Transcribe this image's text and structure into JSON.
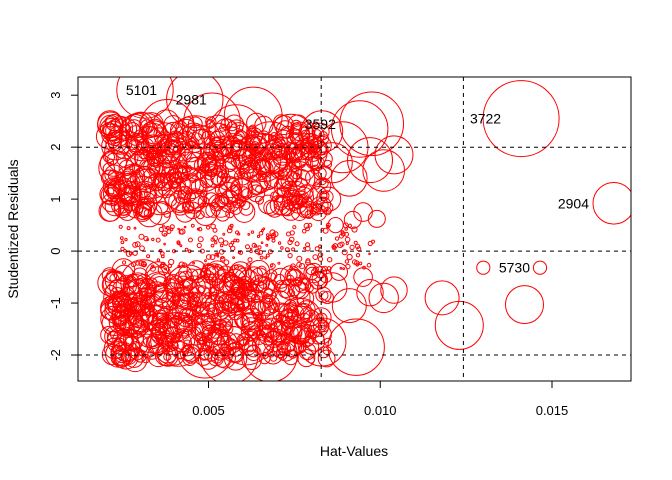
{
  "chart_data": {
    "type": "scatter",
    "title": "",
    "xlabel": "Hat-Values",
    "ylabel": "Studentized Residuals",
    "xlim": [
      0.0012,
      0.0173
    ],
    "ylim": [
      -2.5,
      3.35
    ],
    "x_ticks": [
      0.005,
      0.01,
      0.015
    ],
    "x_tick_labels": [
      "0.005",
      "0.010",
      "0.015"
    ],
    "y_ticks": [
      -2,
      -1,
      0,
      1,
      2,
      3
    ],
    "y_tick_labels": [
      "-2",
      "-1",
      "0",
      "1",
      "2",
      "3"
    ],
    "reference_lines": {
      "horizontal": [
        -2,
        0,
        2
      ],
      "vertical": [
        0.00828,
        0.01242
      ],
      "style": "dashed"
    },
    "marker": {
      "shape": "circle",
      "fill": "none",
      "color": "#ff0000",
      "size_encodes": "Cook's distance"
    },
    "grid": false,
    "legend": "none",
    "labeled_points": [
      {
        "label": "5101",
        "x": 0.00315,
        "y": 3.1,
        "cook": 0.55
      },
      {
        "label": "2981",
        "x": 0.0046,
        "y": 2.92,
        "cook": 0.55
      },
      {
        "label": "3592",
        "x": 0.00975,
        "y": 2.45,
        "cook": 0.7
      },
      {
        "label": "3722",
        "x": 0.0141,
        "y": 2.55,
        "cook": 1.0
      },
      {
        "label": "2904",
        "x": 0.0168,
        "y": 0.92,
        "cook": 0.3
      },
      {
        "label": "5730",
        "x": 0.01465,
        "y": -0.32,
        "cook": 0.03
      }
    ],
    "points": [
      {
        "x": 0.0023,
        "y": 1.6,
        "cook": 0.2
      },
      {
        "x": 0.0026,
        "y": 1.9,
        "cook": 0.32
      },
      {
        "x": 0.0028,
        "y": 1.3,
        "cook": 0.25
      },
      {
        "x": 0.0031,
        "y": 2.2,
        "cook": 0.4
      },
      {
        "x": 0.0033,
        "y": 1.5,
        "cook": 0.45
      },
      {
        "x": 0.0036,
        "y": 1.1,
        "cook": 0.3
      },
      {
        "x": 0.0038,
        "y": 2.4,
        "cook": 0.5
      },
      {
        "x": 0.0041,
        "y": 1.8,
        "cook": 0.42
      },
      {
        "x": 0.0043,
        "y": 1.2,
        "cook": 0.35
      },
      {
        "x": 0.0046,
        "y": 2.1,
        "cook": 0.48
      },
      {
        "x": 0.0048,
        "y": 1.6,
        "cook": 0.4
      },
      {
        "x": 0.0051,
        "y": 2.5,
        "cook": 0.55
      },
      {
        "x": 0.0053,
        "y": 1.3,
        "cook": 0.38
      },
      {
        "x": 0.0056,
        "y": 1.9,
        "cook": 0.45
      },
      {
        "x": 0.0058,
        "y": 2.3,
        "cook": 0.5
      },
      {
        "x": 0.0061,
        "y": 1.5,
        "cook": 0.42
      },
      {
        "x": 0.0063,
        "y": 2.6,
        "cook": 0.58
      },
      {
        "x": 0.0066,
        "y": 1.8,
        "cook": 0.4
      },
      {
        "x": 0.0068,
        "y": 2.0,
        "cook": 0.45
      },
      {
        "x": 0.0071,
        "y": 1.6,
        "cook": 0.3
      },
      {
        "x": 0.0074,
        "y": 2.2,
        "cook": 0.35
      },
      {
        "x": 0.0076,
        "y": 1.4,
        "cook": 0.2
      },
      {
        "x": 0.0079,
        "y": 1.9,
        "cook": 0.25
      },
      {
        "x": 0.0083,
        "y": 2.3,
        "cook": 0.3
      },
      {
        "x": 0.0086,
        "y": 1.7,
        "cook": 0.28
      },
      {
        "x": 0.0089,
        "y": 2.0,
        "cook": 0.45
      },
      {
        "x": 0.0091,
        "y": 1.4,
        "cook": 0.22
      },
      {
        "x": 0.0094,
        "y": 2.35,
        "cook": 0.55
      },
      {
        "x": 0.0097,
        "y": 1.75,
        "cook": 0.35
      },
      {
        "x": 0.0101,
        "y": 1.55,
        "cook": 0.3
      },
      {
        "x": 0.0104,
        "y": 1.85,
        "cook": 0.25
      },
      {
        "x": 0.0085,
        "y": 1.0,
        "cook": 0.1
      },
      {
        "x": 0.0087,
        "y": 0.5,
        "cook": 0.04
      },
      {
        "x": 0.0092,
        "y": 0.6,
        "cook": 0.05
      },
      {
        "x": 0.0099,
        "y": 0.62,
        "cook": 0.05
      },
      {
        "x": 0.0095,
        "y": 0.75,
        "cook": 0.06
      },
      {
        "x": 0.0025,
        "y": -0.9,
        "cook": 0.25
      },
      {
        "x": 0.0028,
        "y": -1.2,
        "cook": 0.3
      },
      {
        "x": 0.0031,
        "y": -0.6,
        "cook": 0.35
      },
      {
        "x": 0.0034,
        "y": -1.5,
        "cook": 0.4
      },
      {
        "x": 0.0036,
        "y": -0.8,
        "cook": 0.3
      },
      {
        "x": 0.0039,
        "y": -1.1,
        "cook": 0.45
      },
      {
        "x": 0.0041,
        "y": -1.7,
        "cook": 0.5
      },
      {
        "x": 0.0044,
        "y": -0.7,
        "cook": 0.35
      },
      {
        "x": 0.0046,
        "y": -1.3,
        "cook": 0.48
      },
      {
        "x": 0.0049,
        "y": -1.9,
        "cook": 0.55
      },
      {
        "x": 0.0051,
        "y": -0.9,
        "cook": 0.4
      },
      {
        "x": 0.0054,
        "y": -1.5,
        "cook": 0.5
      },
      {
        "x": 0.0056,
        "y": -2.0,
        "cook": 0.58
      },
      {
        "x": 0.0059,
        "y": -1.0,
        "cook": 0.4
      },
      {
        "x": 0.0061,
        "y": -1.7,
        "cook": 0.45
      },
      {
        "x": 0.0064,
        "y": -1.2,
        "cook": 0.35
      },
      {
        "x": 0.0068,
        "y": -2.0,
        "cook": 0.5
      },
      {
        "x": 0.0071,
        "y": -1.4,
        "cook": 0.3
      },
      {
        "x": 0.0074,
        "y": -0.9,
        "cook": 0.25
      },
      {
        "x": 0.0077,
        "y": -1.3,
        "cook": 0.28
      },
      {
        "x": 0.0083,
        "y": -1.75,
        "cook": 0.4
      },
      {
        "x": 0.0086,
        "y": -0.7,
        "cook": 0.15
      },
      {
        "x": 0.0091,
        "y": -1.05,
        "cook": 0.2
      },
      {
        "x": 0.0093,
        "y": -1.85,
        "cook": 0.55
      },
      {
        "x": 0.0097,
        "y": -0.8,
        "cook": 0.12
      },
      {
        "x": 0.0101,
        "y": -0.9,
        "cook": 0.15
      },
      {
        "x": 0.0104,
        "y": -0.75,
        "cook": 0.12
      },
      {
        "x": 0.0088,
        "y": -0.4,
        "cook": 0.05
      },
      {
        "x": 0.0095,
        "y": -0.5,
        "cook": 0.06
      },
      {
        "x": 0.0118,
        "y": -0.9,
        "cook": 0.2
      },
      {
        "x": 0.0123,
        "y": -1.43,
        "cook": 0.4
      },
      {
        "x": 0.0142,
        "y": -1.03,
        "cook": 0.25
      },
      {
        "x": 0.013,
        "y": -0.32,
        "cook": 0.03
      }
    ]
  }
}
